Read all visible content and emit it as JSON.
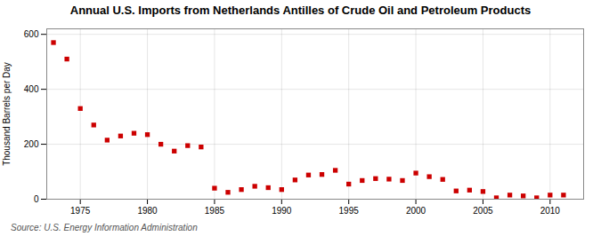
{
  "chart_data": {
    "type": "scatter",
    "title": "Annual U.S. Imports from Netherlands Antilles of Crude Oil and Petroleum Products",
    "ylabel": "Thousand Barrels per Day",
    "source": "Source: U.S. Energy Information Administration",
    "x": [
      1973,
      1974,
      1975,
      1976,
      1977,
      1978,
      1979,
      1980,
      1981,
      1982,
      1983,
      1984,
      1985,
      1986,
      1987,
      1988,
      1989,
      1990,
      1991,
      1992,
      1993,
      1994,
      1995,
      1996,
      1997,
      1998,
      1999,
      2000,
      2001,
      2002,
      2003,
      2004,
      2005,
      2006,
      2007,
      2008,
      2009,
      2010,
      2011
    ],
    "values": [
      570,
      510,
      330,
      270,
      215,
      230,
      240,
      235,
      200,
      175,
      195,
      190,
      40,
      25,
      35,
      47,
      42,
      35,
      70,
      88,
      90,
      105,
      55,
      68,
      75,
      73,
      68,
      95,
      82,
      72,
      30,
      33,
      28,
      5,
      15,
      12,
      5,
      15,
      15
    ],
    "color": "#cc0000",
    "marker": "square",
    "grid": true,
    "xlim": [
      1972.5,
      2012.5
    ],
    "xticks": [
      1975,
      1980,
      1985,
      1990,
      1995,
      2000,
      2005,
      2010
    ],
    "ylim": [
      0,
      620
    ],
    "yticks": [
      0,
      200,
      400,
      600
    ]
  }
}
